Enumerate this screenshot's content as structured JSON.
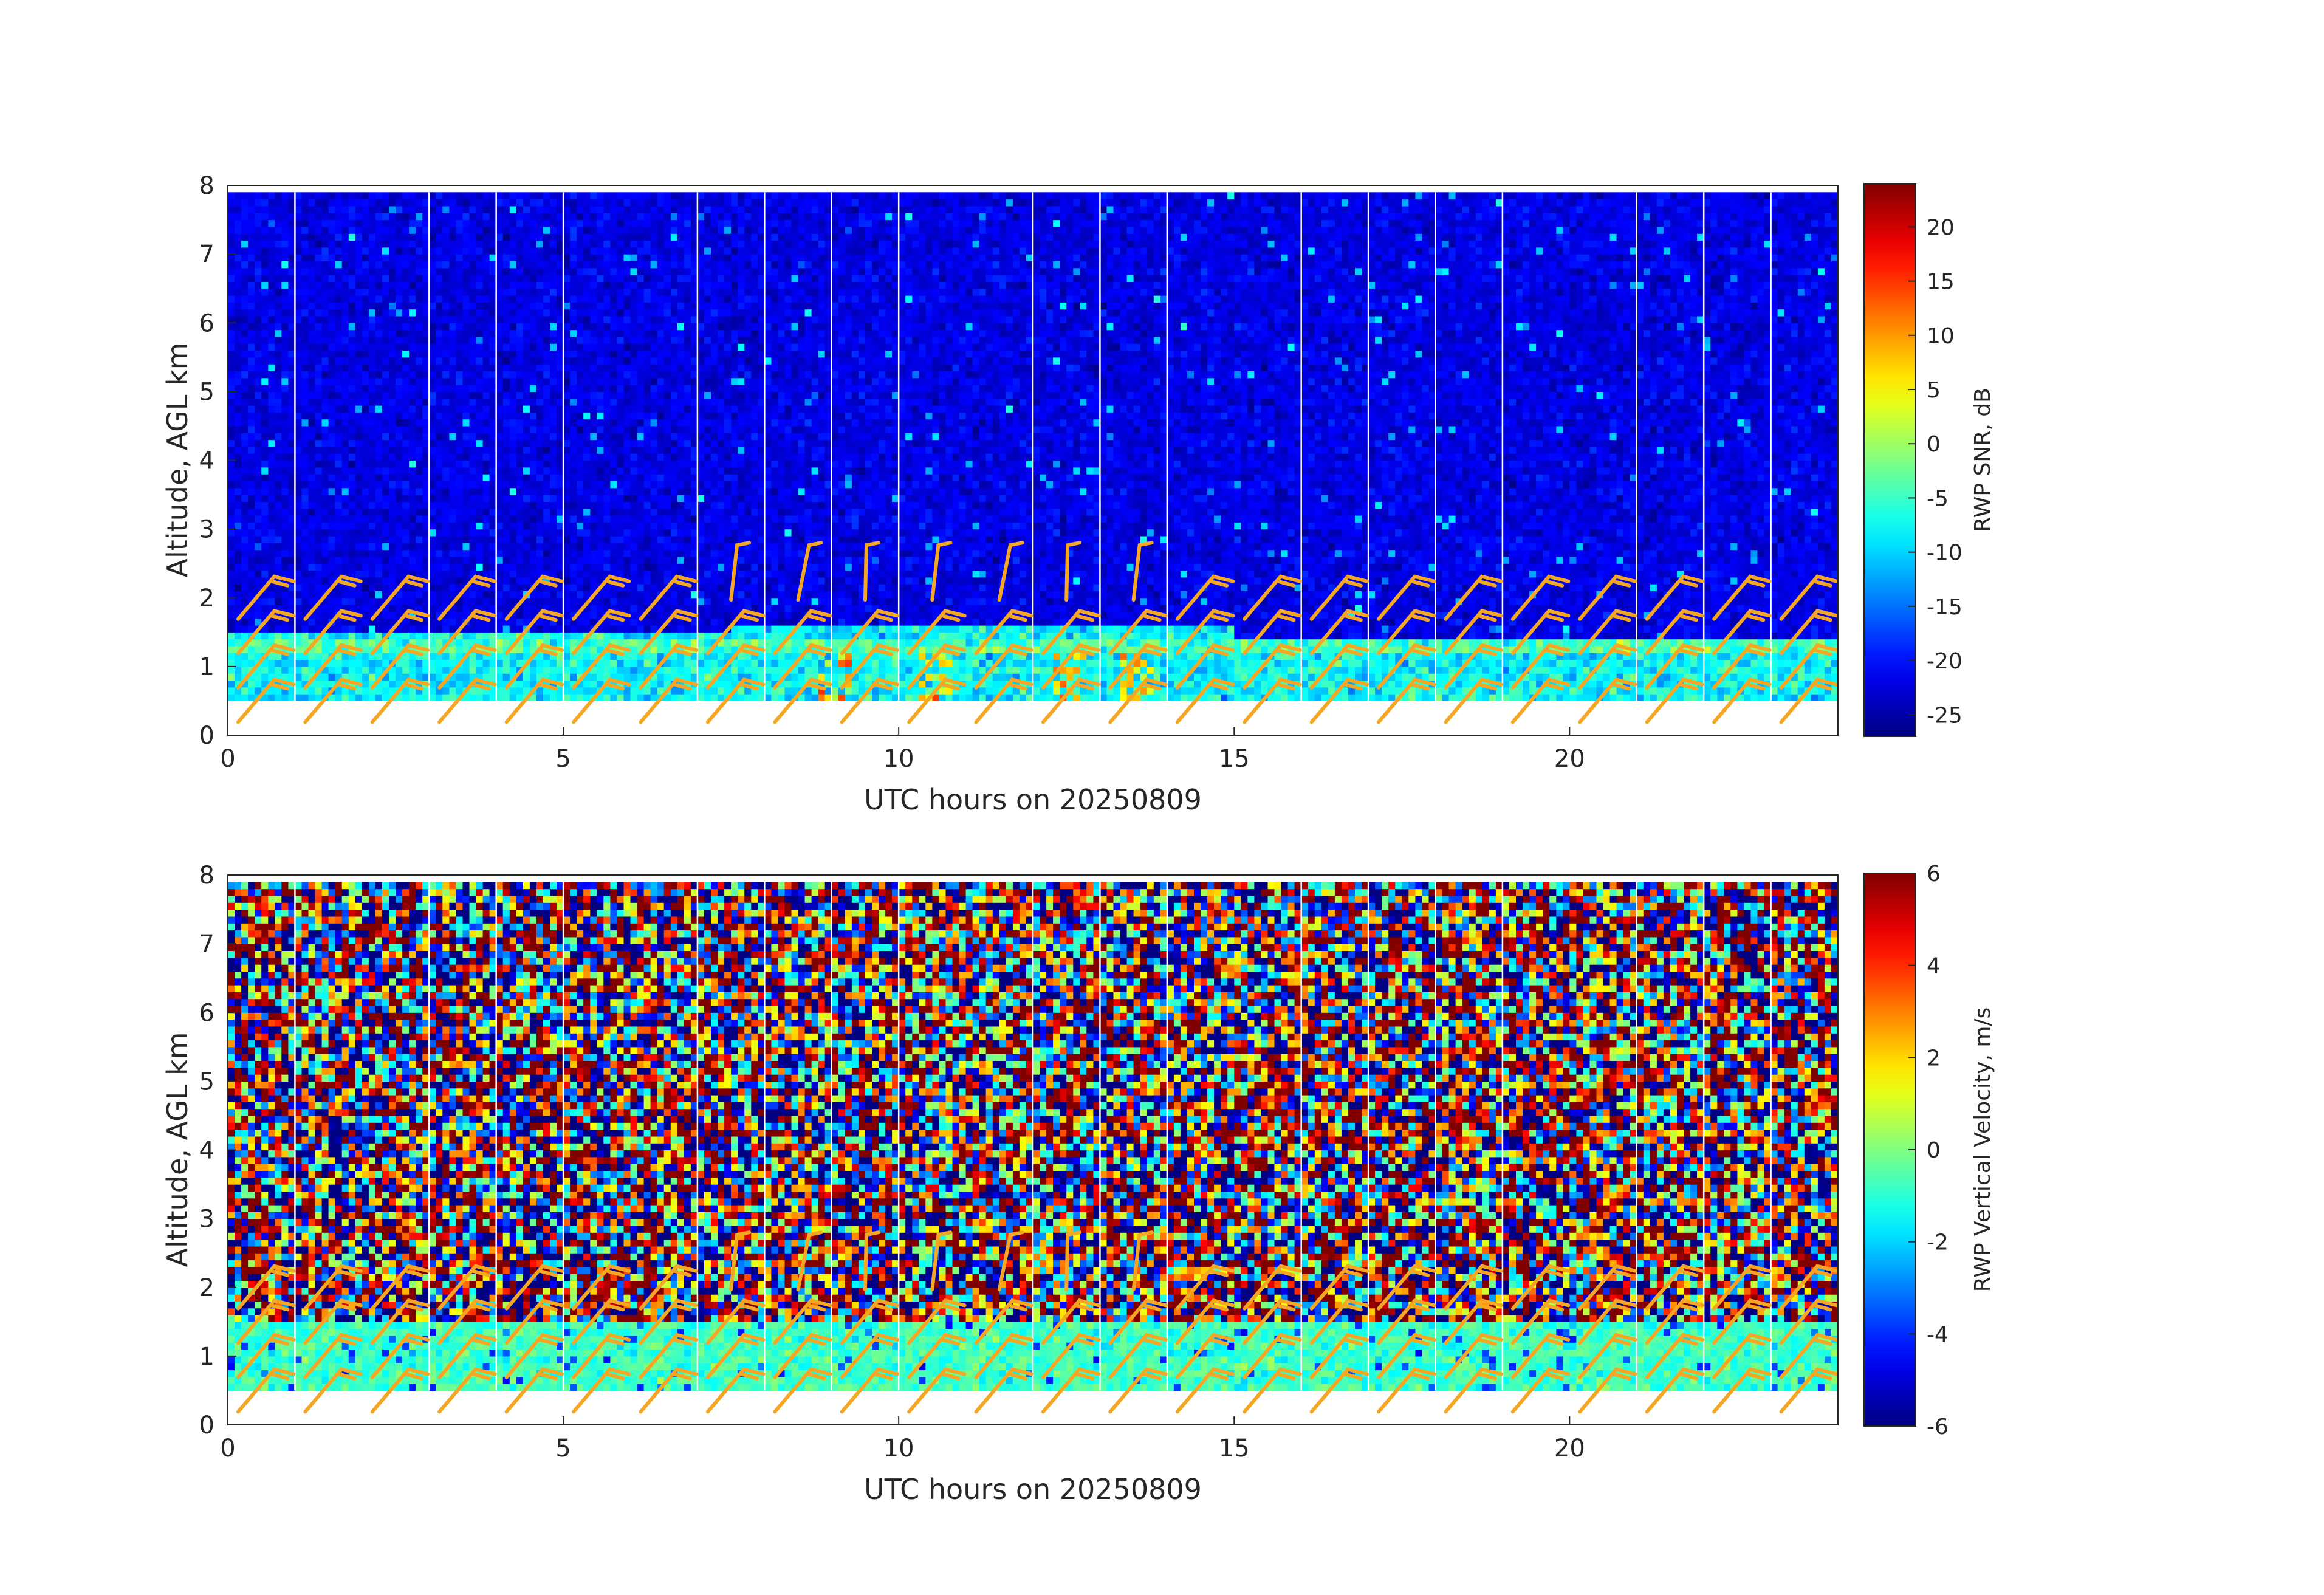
{
  "chart_data": [
    {
      "type": "heatmap",
      "title": "",
      "xlabel": "UTC hours on 20250809",
      "ylabel": "Altitude, AGL km",
      "xlim": [
        0,
        24
      ],
      "ylim": [
        0,
        8
      ],
      "xticks": [
        "0",
        "5",
        "10",
        "15",
        "20"
      ],
      "yticks": [
        "0",
        "1",
        "2",
        "3",
        "4",
        "5",
        "6",
        "7",
        "8"
      ],
      "colorbar": {
        "label": "RWP SNR, dB",
        "range": [
          -27,
          24
        ],
        "ticks": [
          "-25",
          "-20",
          "-15",
          "-10",
          "-5",
          "0",
          "5",
          "10",
          "15",
          "20"
        ],
        "colormap": "jet"
      },
      "data_top_km": 7.9,
      "data_bottom_km": 0.5,
      "boundary_layer": [
        {
          "x_start": 0,
          "x_end": 7.5,
          "top_km": 1.45
        },
        {
          "x_start": 7.5,
          "x_end": 15,
          "top_km": 1.6
        },
        {
          "x_start": 15,
          "x_end": 24,
          "top_km": 1.35
        }
      ],
      "background_level_db": -22,
      "boundary_layer_level_db": -8,
      "enhanced_echo_hours": [
        9,
        10.5,
        12.5,
        13.5
      ],
      "data_gap_hours": [
        1,
        3,
        4,
        5,
        7,
        8,
        9,
        10,
        12,
        13,
        14,
        16,
        17,
        18,
        19,
        21,
        22,
        23
      ]
    },
    {
      "type": "heatmap",
      "title": "",
      "xlabel": "UTC hours on 20250809",
      "ylabel": "Altitude, AGL km",
      "xlim": [
        0,
        24
      ],
      "ylim": [
        0,
        8
      ],
      "xticks": [
        "0",
        "5",
        "10",
        "15",
        "20"
      ],
      "yticks": [
        "0",
        "1",
        "2",
        "3",
        "4",
        "5",
        "6",
        "7",
        "8"
      ],
      "colorbar": {
        "label": "RWP Vertical Velocity, m/s",
        "range": [
          -6,
          6
        ],
        "ticks": [
          "-6",
          "-4",
          "-2",
          "0",
          "2",
          "4",
          "6"
        ],
        "colormap": "jet"
      },
      "data_top_km": 7.9,
      "data_bottom_km": 0.5,
      "boundary_layer_top_km": 1.5,
      "boundary_layer_velocity_ms": -0.8,
      "data_gap_hours": [
        1,
        3,
        4,
        5,
        7,
        8,
        9,
        10,
        12,
        13,
        14,
        16,
        17,
        18,
        19,
        21,
        22,
        23
      ]
    }
  ],
  "wind_barbs": {
    "color": "#f5a623",
    "hours": [
      0.5,
      1.5,
      2.5,
      3.5,
      4.5,
      5.5,
      6.5,
      7.5,
      8.5,
      9.5,
      10.5,
      11.5,
      12.5,
      13.5,
      14.5,
      15.5,
      16.5,
      17.5,
      18.5,
      19.5,
      20.5,
      21.5,
      22.5,
      23.5
    ],
    "levels_km": [
      0.5,
      1.0,
      1.5,
      2.0,
      2.5
    ]
  }
}
